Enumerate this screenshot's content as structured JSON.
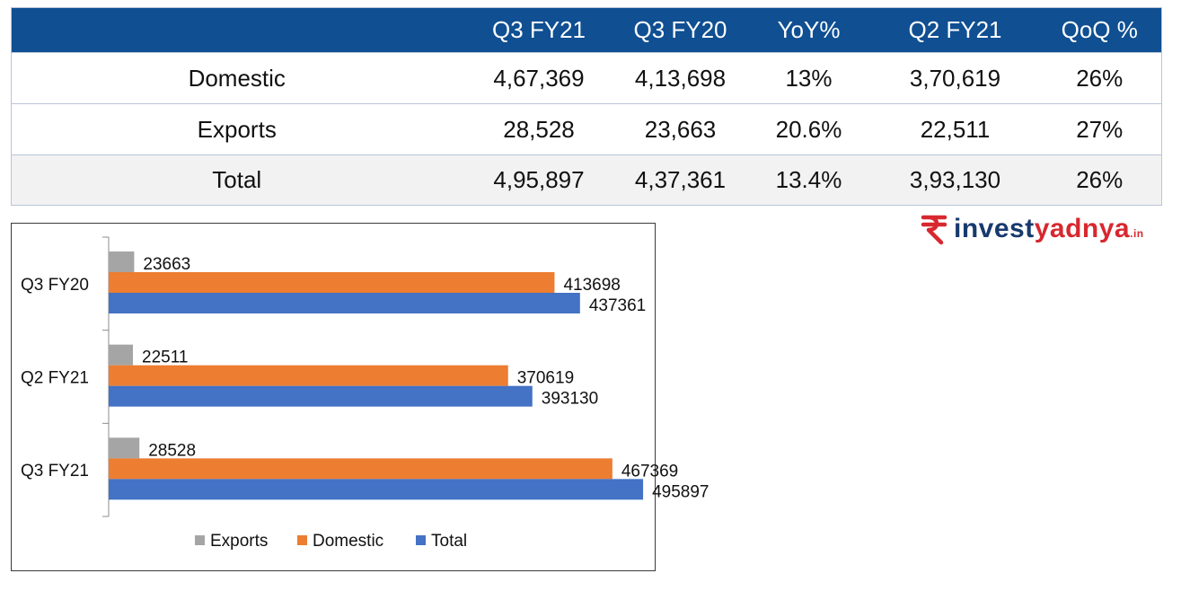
{
  "table": {
    "columns": [
      "",
      "Q3 FY21",
      "Q3 FY20",
      "YoY%",
      "Q2 FY21",
      "QoQ %"
    ],
    "rows": [
      [
        "Domestic",
        "4,67,369",
        "4,13,698",
        "13%",
        "3,70,619",
        "26%"
      ],
      [
        "Exports",
        "28,528",
        "23,663",
        "20.6%",
        "22,511",
        "27%"
      ],
      [
        "Total",
        "4,95,897",
        "4,37,361",
        "13.4%",
        "3,93,130",
        "26%"
      ]
    ],
    "header_color": "#0f4f92",
    "total_row_color": "#f2f2f2"
  },
  "chart_data": {
    "type": "bar",
    "orientation": "horizontal",
    "categories": [
      "Q3 FY20",
      "Q2 FY21",
      "Q3 FY21"
    ],
    "series": [
      {
        "name": "Exports",
        "color": "#a5a5a5",
        "values": [
          23663,
          22511,
          28528
        ]
      },
      {
        "name": "Domestic",
        "color": "#ed7d31",
        "values": [
          413698,
          370619,
          467369
        ]
      },
      {
        "name": "Total",
        "color": "#4472c4",
        "values": [
          437361,
          393130,
          495897
        ]
      }
    ],
    "data_labels": true,
    "xlim": [
      0,
      500000
    ],
    "grid": false,
    "legend_position": "bottom"
  },
  "logo": {
    "icon": "rupee-sign-icon",
    "text_a": "invest",
    "text_b": "yadnya",
    "tld": ".in",
    "color_a": "#173a6e",
    "color_b": "#d7282f"
  }
}
